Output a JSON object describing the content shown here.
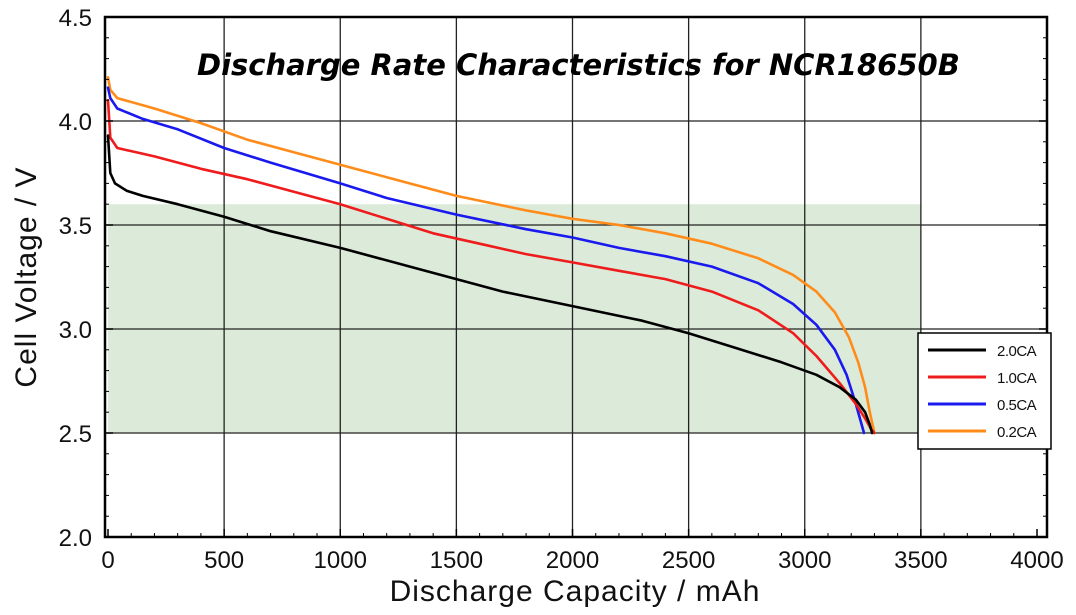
{
  "chart_data": {
    "type": "line",
    "title": "Discharge Rate Characteristics for NCR18650B",
    "xlabel": "Discharge  Capacity  /  mAh",
    "ylabel": "Cell  Voltage  /  V",
    "xlim": [
      0,
      4000
    ],
    "ylim": [
      2.0,
      4.5
    ],
    "xticks": [
      "0",
      "500",
      "1000",
      "1500",
      "2000",
      "2500",
      "3000",
      "3500",
      "4000"
    ],
    "yticks": [
      "2.0",
      "2.5",
      "3.0",
      "3.5",
      "4.0",
      "4.5"
    ],
    "grid": true,
    "legend_position": "right",
    "highlight_region": {
      "x": [
        0,
        3500
      ],
      "y": [
        2.5,
        3.6
      ],
      "color": "#dcebd9"
    },
    "series": [
      {
        "name": "2.0CA",
        "color": "#000000",
        "points": [
          [
            0,
            3.93
          ],
          [
            10,
            3.75
          ],
          [
            30,
            3.7
          ],
          [
            80,
            3.665
          ],
          [
            150,
            3.64
          ],
          [
            300,
            3.6
          ],
          [
            500,
            3.54
          ],
          [
            700,
            3.47
          ],
          [
            1000,
            3.39
          ],
          [
            1300,
            3.3
          ],
          [
            1500,
            3.24
          ],
          [
            1700,
            3.18
          ],
          [
            2000,
            3.11
          ],
          [
            2300,
            3.04
          ],
          [
            2500,
            2.98
          ],
          [
            2700,
            2.91
          ],
          [
            2900,
            2.84
          ],
          [
            3050,
            2.78
          ],
          [
            3150,
            2.72
          ],
          [
            3220,
            2.66
          ],
          [
            3260,
            2.6
          ],
          [
            3280,
            2.54
          ],
          [
            3290,
            2.5
          ]
        ]
      },
      {
        "name": "1.0CA",
        "color": "#ee1c1c",
        "points": [
          [
            0,
            4.1
          ],
          [
            10,
            3.92
          ],
          [
            40,
            3.87
          ],
          [
            200,
            3.83
          ],
          [
            400,
            3.77
          ],
          [
            600,
            3.72
          ],
          [
            800,
            3.66
          ],
          [
            1000,
            3.6
          ],
          [
            1200,
            3.53
          ],
          [
            1400,
            3.46
          ],
          [
            1600,
            3.41
          ],
          [
            1800,
            3.36
          ],
          [
            2000,
            3.32
          ],
          [
            2200,
            3.28
          ],
          [
            2400,
            3.24
          ],
          [
            2600,
            3.18
          ],
          [
            2800,
            3.09
          ],
          [
            2950,
            2.98
          ],
          [
            3050,
            2.87
          ],
          [
            3150,
            2.74
          ],
          [
            3220,
            2.64
          ],
          [
            3260,
            2.57
          ],
          [
            3285,
            2.52
          ],
          [
            3300,
            2.5
          ]
        ]
      },
      {
        "name": "0.5CA",
        "color": "#1a1aee",
        "points": [
          [
            0,
            4.16
          ],
          [
            10,
            4.11
          ],
          [
            40,
            4.06
          ],
          [
            150,
            4.01
          ],
          [
            300,
            3.96
          ],
          [
            500,
            3.87
          ],
          [
            700,
            3.8
          ],
          [
            1000,
            3.7
          ],
          [
            1200,
            3.63
          ],
          [
            1500,
            3.55
          ],
          [
            1800,
            3.48
          ],
          [
            2000,
            3.44
          ],
          [
            2200,
            3.39
          ],
          [
            2400,
            3.35
          ],
          [
            2600,
            3.3
          ],
          [
            2800,
            3.22
          ],
          [
            2950,
            3.12
          ],
          [
            3050,
            3.02
          ],
          [
            3130,
            2.9
          ],
          [
            3180,
            2.78
          ],
          [
            3220,
            2.64
          ],
          [
            3240,
            2.56
          ],
          [
            3255,
            2.5
          ]
        ]
      },
      {
        "name": "0.2CA",
        "color": "#ff8c1a",
        "points": [
          [
            0,
            4.21
          ],
          [
            10,
            4.15
          ],
          [
            40,
            4.11
          ],
          [
            200,
            4.06
          ],
          [
            400,
            3.99
          ],
          [
            600,
            3.91
          ],
          [
            800,
            3.85
          ],
          [
            1000,
            3.79
          ],
          [
            1200,
            3.73
          ],
          [
            1500,
            3.64
          ],
          [
            1800,
            3.57
          ],
          [
            2000,
            3.53
          ],
          [
            2200,
            3.5
          ],
          [
            2400,
            3.46
          ],
          [
            2600,
            3.41
          ],
          [
            2800,
            3.34
          ],
          [
            2950,
            3.26
          ],
          [
            3050,
            3.18
          ],
          [
            3130,
            3.08
          ],
          [
            3190,
            2.96
          ],
          [
            3230,
            2.84
          ],
          [
            3260,
            2.72
          ],
          [
            3280,
            2.6
          ],
          [
            3300,
            2.5
          ]
        ]
      }
    ]
  }
}
